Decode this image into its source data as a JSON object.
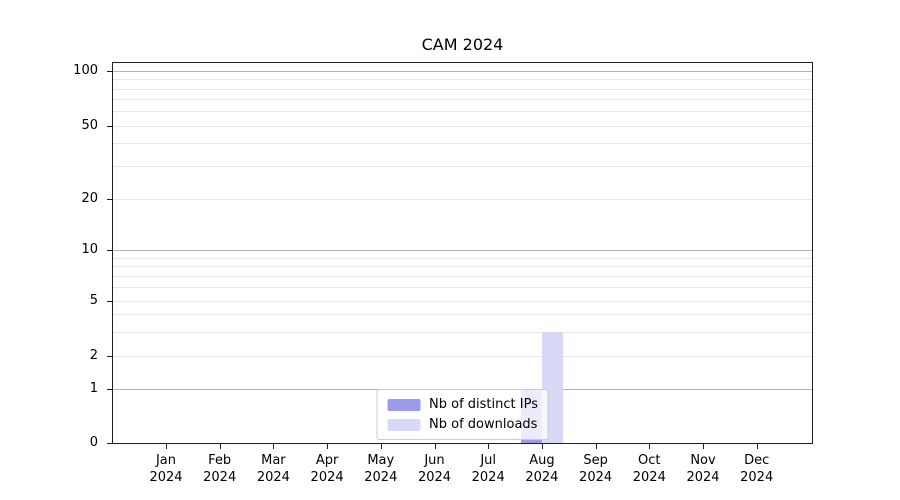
{
  "chart_data": {
    "type": "bar",
    "title": "CAM 2024",
    "categories": [
      {
        "month": "Jan",
        "year": "2024"
      },
      {
        "month": "Feb",
        "year": "2024"
      },
      {
        "month": "Mar",
        "year": "2024"
      },
      {
        "month": "Apr",
        "year": "2024"
      },
      {
        "month": "May",
        "year": "2024"
      },
      {
        "month": "Jun",
        "year": "2024"
      },
      {
        "month": "Jul",
        "year": "2024"
      },
      {
        "month": "Aug",
        "year": "2024"
      },
      {
        "month": "Sep",
        "year": "2024"
      },
      {
        "month": "Oct",
        "year": "2024"
      },
      {
        "month": "Nov",
        "year": "2024"
      },
      {
        "month": "Dec",
        "year": "2024"
      }
    ],
    "series": [
      {
        "name": "Nb of distinct IPs",
        "color": "#9b9bec",
        "values": [
          0,
          0,
          0,
          0,
          0,
          0,
          0,
          1,
          0,
          0,
          0,
          0
        ]
      },
      {
        "name": "Nb of downloads",
        "color": "#d8d8f7",
        "values": [
          0,
          0,
          0,
          0,
          0,
          0,
          0,
          3,
          0,
          0,
          0,
          0
        ]
      }
    ],
    "yticks": [
      {
        "value": 0,
        "frac": 0.0
      },
      {
        "value": 1,
        "frac": 0.1414
      },
      {
        "value": 2,
        "frac": 0.2277
      },
      {
        "value": 5,
        "frac": 0.3743
      },
      {
        "value": 10,
        "frac": 0.5079
      },
      {
        "value": 20,
        "frac": 0.6427
      },
      {
        "value": 50,
        "frac": 0.8351
      },
      {
        "value": 100,
        "frac": 0.9791
      }
    ],
    "major_gridline_values": [
      1,
      10,
      100
    ],
    "minor_gridline_values": [
      2,
      3,
      4,
      5,
      6,
      7,
      8,
      9,
      20,
      30,
      40,
      50,
      60,
      70,
      80,
      90
    ],
    "yscale": "quasi-log",
    "ylim_bottom": 0,
    "grid": "horizontal",
    "legend_position": "lower center",
    "colors": {
      "major_grid": "#b3b3b3",
      "minor_grid": "#e7e7e7",
      "axis": "#1f1f1f",
      "text": "#000000",
      "legend_border": "#cccccc"
    }
  }
}
